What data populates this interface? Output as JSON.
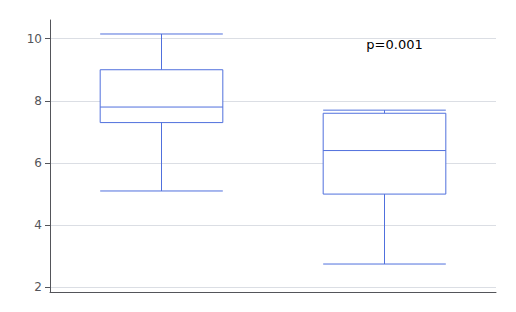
{
  "chart_data": {
    "type": "box",
    "categories": [
      null,
      null
    ],
    "values": [
      [
        5.1,
        7.3,
        7.8,
        9.0,
        10.15
      ],
      [
        2.75,
        5.0,
        6.4,
        7.6,
        7.7
      ]
    ],
    "annotations": [
      "p=0.001"
    ],
    "ylim": [
      1.85,
      10.6
    ],
    "yticks": [
      2,
      4,
      6,
      8,
      10
    ],
    "grid": true,
    "tick_labels": "y"
  }
}
